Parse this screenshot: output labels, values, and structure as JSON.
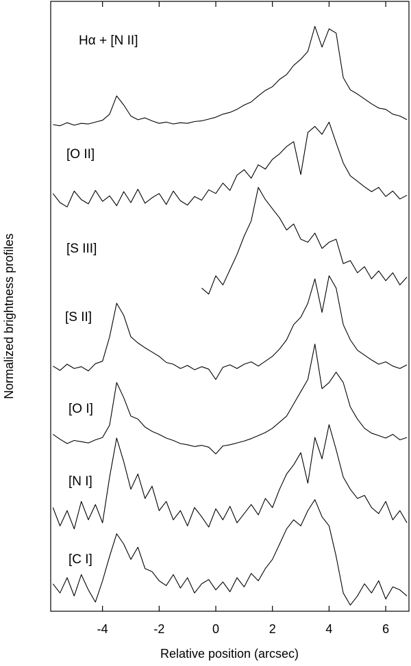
{
  "chart_data": {
    "type": "line",
    "x_label": "Relative position (arcsec)",
    "y_label": "Normalized brightness profiles",
    "xlim": [
      -5.83,
      6.82
    ],
    "xticks": [
      -4,
      -2,
      0,
      2,
      4,
      6
    ],
    "ylim": [
      0,
      100
    ],
    "x": [
      -5.75,
      -5.5,
      -5.25,
      -5,
      -4.75,
      -4.5,
      -4.25,
      -4,
      -3.75,
      -3.5,
      -3.25,
      -3,
      -2.75,
      -2.5,
      -2.25,
      -2,
      -1.75,
      -1.5,
      -1.25,
      -1,
      -0.75,
      -0.5,
      -0.25,
      0,
      0.25,
      0.5,
      0.75,
      1,
      1.25,
      1.5,
      1.75,
      2,
      2.25,
      2.5,
      2.75,
      3,
      3.25,
      3.5,
      3.75,
      4,
      4.25,
      4.5,
      4.75,
      5,
      5.25,
      5.5,
      5.75,
      6,
      6.25,
      6.5,
      6.75
    ],
    "series": [
      {
        "name": "Hα + [N II]",
        "color": "#000000",
        "values": [
          79.8,
          79.6,
          80.1,
          79.7,
          80.0,
          79.9,
          80.2,
          80.5,
          81.5,
          84.5,
          83.0,
          81.2,
          80.6,
          80.9,
          80.4,
          80.0,
          80.2,
          79.9,
          80.1,
          80.0,
          80.3,
          80.4,
          80.7,
          81.0,
          81.5,
          81.8,
          82.3,
          83.0,
          83.5,
          84.5,
          85.4,
          86.0,
          87.2,
          88.0,
          89.5,
          90.5,
          91.8,
          95.9,
          92.5,
          95.5,
          94.8,
          87.5,
          85.5,
          84.8,
          84.0,
          83.2,
          82.5,
          82.3,
          81.5,
          81.2,
          80.6
        ]
      },
      {
        "name": "[O II]",
        "color": "#000000",
        "values": [
          68.5,
          67.0,
          66.3,
          68.9,
          67.5,
          66.8,
          69.0,
          67.2,
          68.1,
          66.5,
          68.8,
          67.0,
          69.2,
          66.9,
          67.8,
          68.5,
          66.7,
          68.9,
          67.3,
          66.6,
          68.0,
          67.4,
          69.1,
          68.5,
          70.2,
          69.0,
          71.5,
          72.4,
          71.0,
          73.2,
          72.5,
          74.1,
          75.0,
          76.2,
          77.0,
          71.6,
          78.5,
          79.5,
          78.2,
          80.2,
          76.8,
          73.5,
          71.4,
          70.5,
          69.6,
          68.8,
          69.5,
          68.0,
          68.9,
          67.6,
          68.2
        ]
      },
      {
        "name": "[S III]",
        "color": "#000000",
        "values": [
          null,
          null,
          null,
          null,
          null,
          null,
          null,
          null,
          null,
          null,
          null,
          null,
          null,
          null,
          null,
          null,
          null,
          null,
          null,
          null,
          null,
          53.0,
          52.0,
          55.0,
          53.5,
          56.0,
          58.5,
          61.5,
          64.0,
          69.5,
          67.5,
          66.0,
          64.5,
          62.5,
          63.5,
          61.0,
          60.5,
          62.0,
          59.5,
          60.5,
          61.0,
          57.0,
          57.5,
          55.5,
          56.5,
          54.5,
          55.8,
          54.2,
          55.5,
          53.5,
          54.8
        ]
      },
      {
        "name": "[S II]",
        "color": "#000000",
        "values": [
          40.2,
          39.5,
          40.5,
          39.8,
          40.1,
          39.4,
          40.6,
          41.0,
          45.0,
          50.5,
          48.5,
          45.0,
          44.0,
          43.2,
          42.5,
          41.8,
          40.8,
          40.5,
          39.8,
          40.3,
          39.6,
          40.1,
          39.7,
          38.0,
          40.0,
          40.4,
          39.8,
          40.5,
          40.9,
          40.2,
          41.0,
          41.8,
          43.0,
          44.5,
          47.0,
          48.2,
          50.5,
          54.5,
          49.0,
          55.0,
          53.0,
          47.0,
          44.5,
          42.8,
          42.0,
          41.2,
          40.5,
          40.9,
          40.2,
          39.8,
          40.4
        ]
      },
      {
        "name": "[O I]",
        "color": "#000000",
        "values": [
          29.0,
          28.2,
          27.5,
          28.0,
          27.8,
          27.6,
          28.1,
          28.5,
          30.5,
          37.5,
          35.0,
          32.0,
          31.5,
          30.2,
          29.5,
          29.0,
          28.4,
          28.0,
          27.5,
          27.3,
          27.0,
          27.2,
          26.9,
          25.8,
          27.1,
          27.3,
          27.6,
          27.9,
          28.3,
          28.8,
          29.3,
          30.0,
          31.0,
          32.0,
          34.0,
          36.0,
          38.0,
          43.8,
          36.5,
          37.5,
          39.2,
          37.5,
          33.5,
          31.5,
          30.0,
          29.2,
          28.8,
          28.4,
          29.0,
          28.1,
          28.5
        ]
      },
      {
        "name": "[N I]",
        "color": "#000000",
        "values": [
          17.0,
          14.0,
          16.5,
          13.5,
          18.0,
          15.0,
          17.5,
          14.5,
          22.0,
          28.4,
          24.5,
          20.0,
          22.5,
          18.5,
          20.5,
          16.5,
          18.0,
          15.0,
          16.5,
          14.0,
          17.0,
          15.5,
          13.8,
          16.8,
          15.0,
          17.2,
          14.5,
          16.0,
          17.5,
          15.8,
          18.5,
          17.0,
          20.0,
          22.5,
          24.0,
          26.0,
          21.0,
          28.5,
          25.0,
          30.6,
          26.5,
          22.0,
          20.0,
          18.5,
          19.0,
          17.0,
          16.0,
          18.0,
          15.0,
          16.5,
          14.5
        ]
      },
      {
        "name": "[C I]",
        "color": "#000000",
        "values": [
          4.5,
          3.0,
          5.5,
          2.5,
          6.0,
          3.5,
          1.5,
          5.0,
          9.0,
          12.7,
          11.0,
          8.5,
          10.5,
          7.0,
          6.5,
          5.0,
          4.2,
          6.0,
          3.8,
          5.5,
          3.0,
          4.5,
          5.2,
          3.5,
          4.8,
          3.2,
          5.5,
          4.0,
          6.2,
          5.0,
          7.0,
          8.5,
          11.0,
          13.5,
          15.0,
          14.0,
          16.5,
          18.3,
          15.5,
          14.0,
          9.0,
          3.0,
          1.0,
          2.5,
          4.5,
          3.0,
          5.0,
          2.0,
          4.0,
          3.5,
          2.5
        ]
      }
    ]
  }
}
